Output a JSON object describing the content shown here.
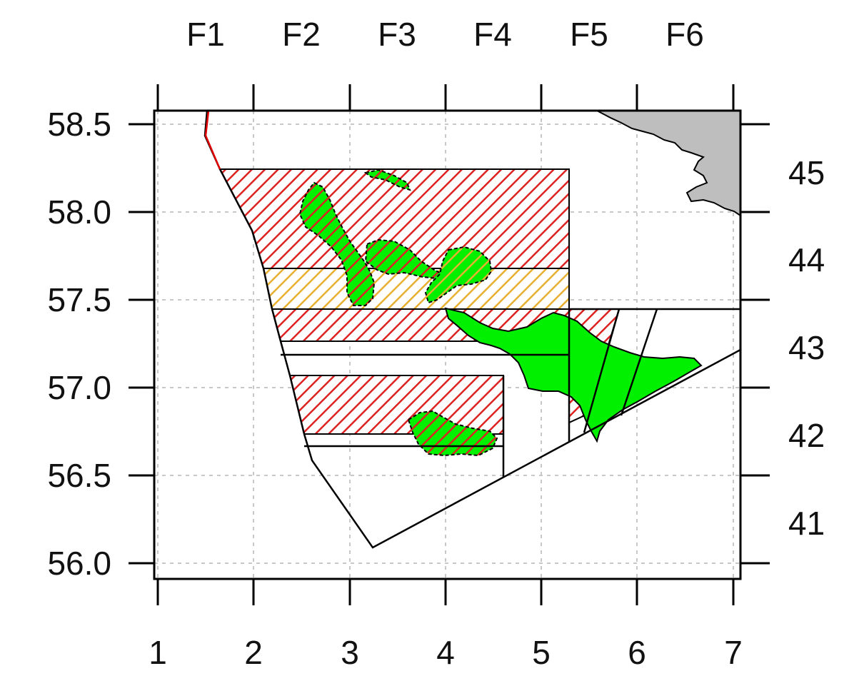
{
  "map": {
    "top_labels": [
      "F1",
      "F2",
      "F3",
      "F4",
      "F5",
      "F6"
    ],
    "bottom_labels": [
      "1",
      "2",
      "3",
      "4",
      "5",
      "6",
      "7"
    ],
    "left_labels": [
      "58.5",
      "58.0",
      "57.5",
      "57.0",
      "56.5",
      "56.0"
    ],
    "right_labels": [
      "45",
      "44",
      "43",
      "42",
      "41"
    ],
    "colors": {
      "land": "#bebebe",
      "green_area": "#00f000",
      "red_hatch": "#dd2222",
      "orange_hatch": "#e8b030",
      "boundary_red": "#e00000",
      "grid": "#c8c8c8"
    }
  }
}
